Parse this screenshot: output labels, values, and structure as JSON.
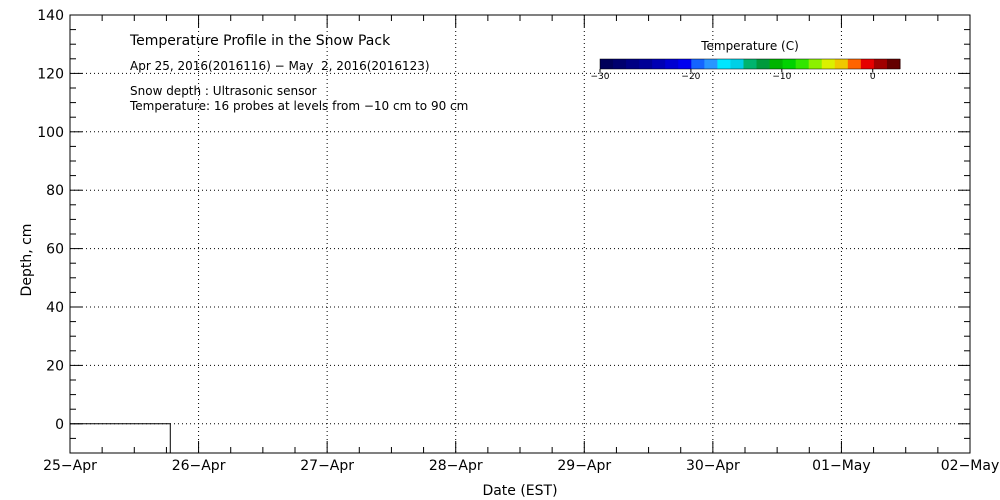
{
  "chart_data": {
    "type": "line",
    "title": "Temperature Profile in the Snow Pack",
    "subtitle": "Apr 25, 2016(2016116) − May  2, 2016(2016123)",
    "notes": [
      "Snow depth : Ultrasonic sensor",
      "Temperature: 16 probes at levels from −10 cm to 90 cm"
    ],
    "xlabel": "Date (EST)",
    "ylabel": "Depth, cm",
    "x_tick_labels": [
      "25−Apr",
      "26−Apr",
      "27−Apr",
      "28−Apr",
      "29−Apr",
      "30−Apr",
      "01−May",
      "02−May"
    ],
    "y_ticks": [
      0,
      20,
      40,
      60,
      80,
      100,
      120,
      140
    ],
    "xlim_days": [
      0,
      7
    ],
    "ylim": [
      -10,
      140
    ],
    "grid": true,
    "series": [
      {
        "x_days": [
          0,
          0.78,
          0.78
        ],
        "y": [
          0,
          0,
          -10
        ],
        "color": "#000000"
      }
    ],
    "colorbar": {
      "label": "Temperature (C)",
      "range": [
        -30,
        3
      ],
      "tick_labels": [
        "−30",
        "−20",
        "−10",
        "0"
      ],
      "tick_values": [
        -30,
        -20,
        -10,
        0
      ],
      "colors": [
        "#00005a",
        "#00006e",
        "#000084",
        "#000096",
        "#0000b4",
        "#0000d2",
        "#0000f0",
        "#1464ff",
        "#2896ff",
        "#00e6ff",
        "#00d0e6",
        "#00b46e",
        "#009a3c",
        "#00b400",
        "#00d200",
        "#32e600",
        "#8cf000",
        "#dcf000",
        "#f0c800",
        "#ff6400",
        "#e60000",
        "#a00000",
        "#640000"
      ]
    }
  }
}
